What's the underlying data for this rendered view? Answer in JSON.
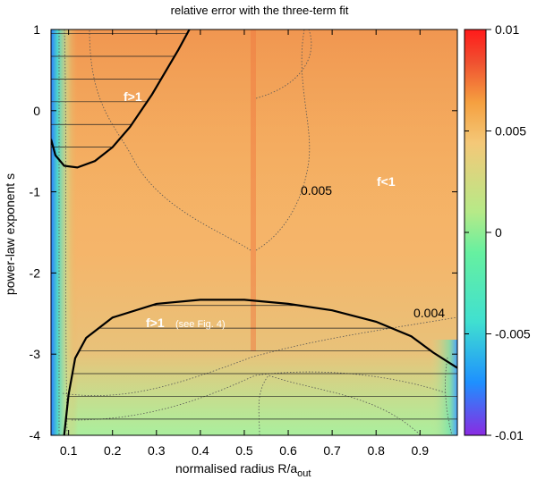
{
  "chart_data": {
    "type": "heatmap",
    "title": "relative error with the three-term fit",
    "xlabel": "normalised radius R/a",
    "xlabel_subscript": "out",
    "ylabel": "power-law exponent s",
    "xlim": [
      0.06,
      0.985
    ],
    "ylim": [
      -4,
      1
    ],
    "x_ticks": [
      "0.1",
      "0.2",
      "0.3",
      "0.4",
      "0.5",
      "0.6",
      "0.7",
      "0.8",
      "0.9"
    ],
    "y_ticks": [
      "1",
      "0",
      "-1",
      "-2",
      "-3",
      "-4"
    ],
    "colorbar": {
      "range": [
        -0.01,
        0.01
      ],
      "ticks": [
        "0.01",
        "0.005",
        "0",
        "-0.005",
        "-0.01"
      ],
      "colors": [
        "#8a2be2",
        "#1e90ff",
        "#40e0d0",
        "#66f0a0",
        "#b6ea88",
        "#f4c878",
        "#f5a040",
        "#f05030",
        "#ff1a1a"
      ]
    },
    "contour_labels": [
      "0.005",
      "0.004"
    ],
    "regions": {
      "upper_f_gt_1": "f>1",
      "lower_f_gt_1": "f>1",
      "lower_note": "(see Fig. 4)",
      "middle_f_lt_1": "f<1"
    },
    "boundary_upper": [
      [
        0.06,
        -0.35
      ],
      [
        0.07,
        -0.55
      ],
      [
        0.09,
        -0.68
      ],
      [
        0.12,
        -0.7
      ],
      [
        0.16,
        -0.62
      ],
      [
        0.2,
        -0.45
      ],
      [
        0.24,
        -0.2
      ],
      [
        0.29,
        0.2
      ],
      [
        0.35,
        0.75
      ],
      [
        0.375,
        1.0
      ]
    ],
    "boundary_lower": [
      [
        0.09,
        -4.0
      ],
      [
        0.1,
        -3.5
      ],
      [
        0.115,
        -3.05
      ],
      [
        0.14,
        -2.8
      ],
      [
        0.2,
        -2.55
      ],
      [
        0.3,
        -2.38
      ],
      [
        0.4,
        -2.33
      ],
      [
        0.5,
        -2.33
      ],
      [
        0.6,
        -2.38
      ],
      [
        0.7,
        -2.46
      ],
      [
        0.8,
        -2.6
      ],
      [
        0.88,
        -2.78
      ],
      [
        0.93,
        -2.98
      ],
      [
        0.985,
        -3.17
      ]
    ]
  }
}
